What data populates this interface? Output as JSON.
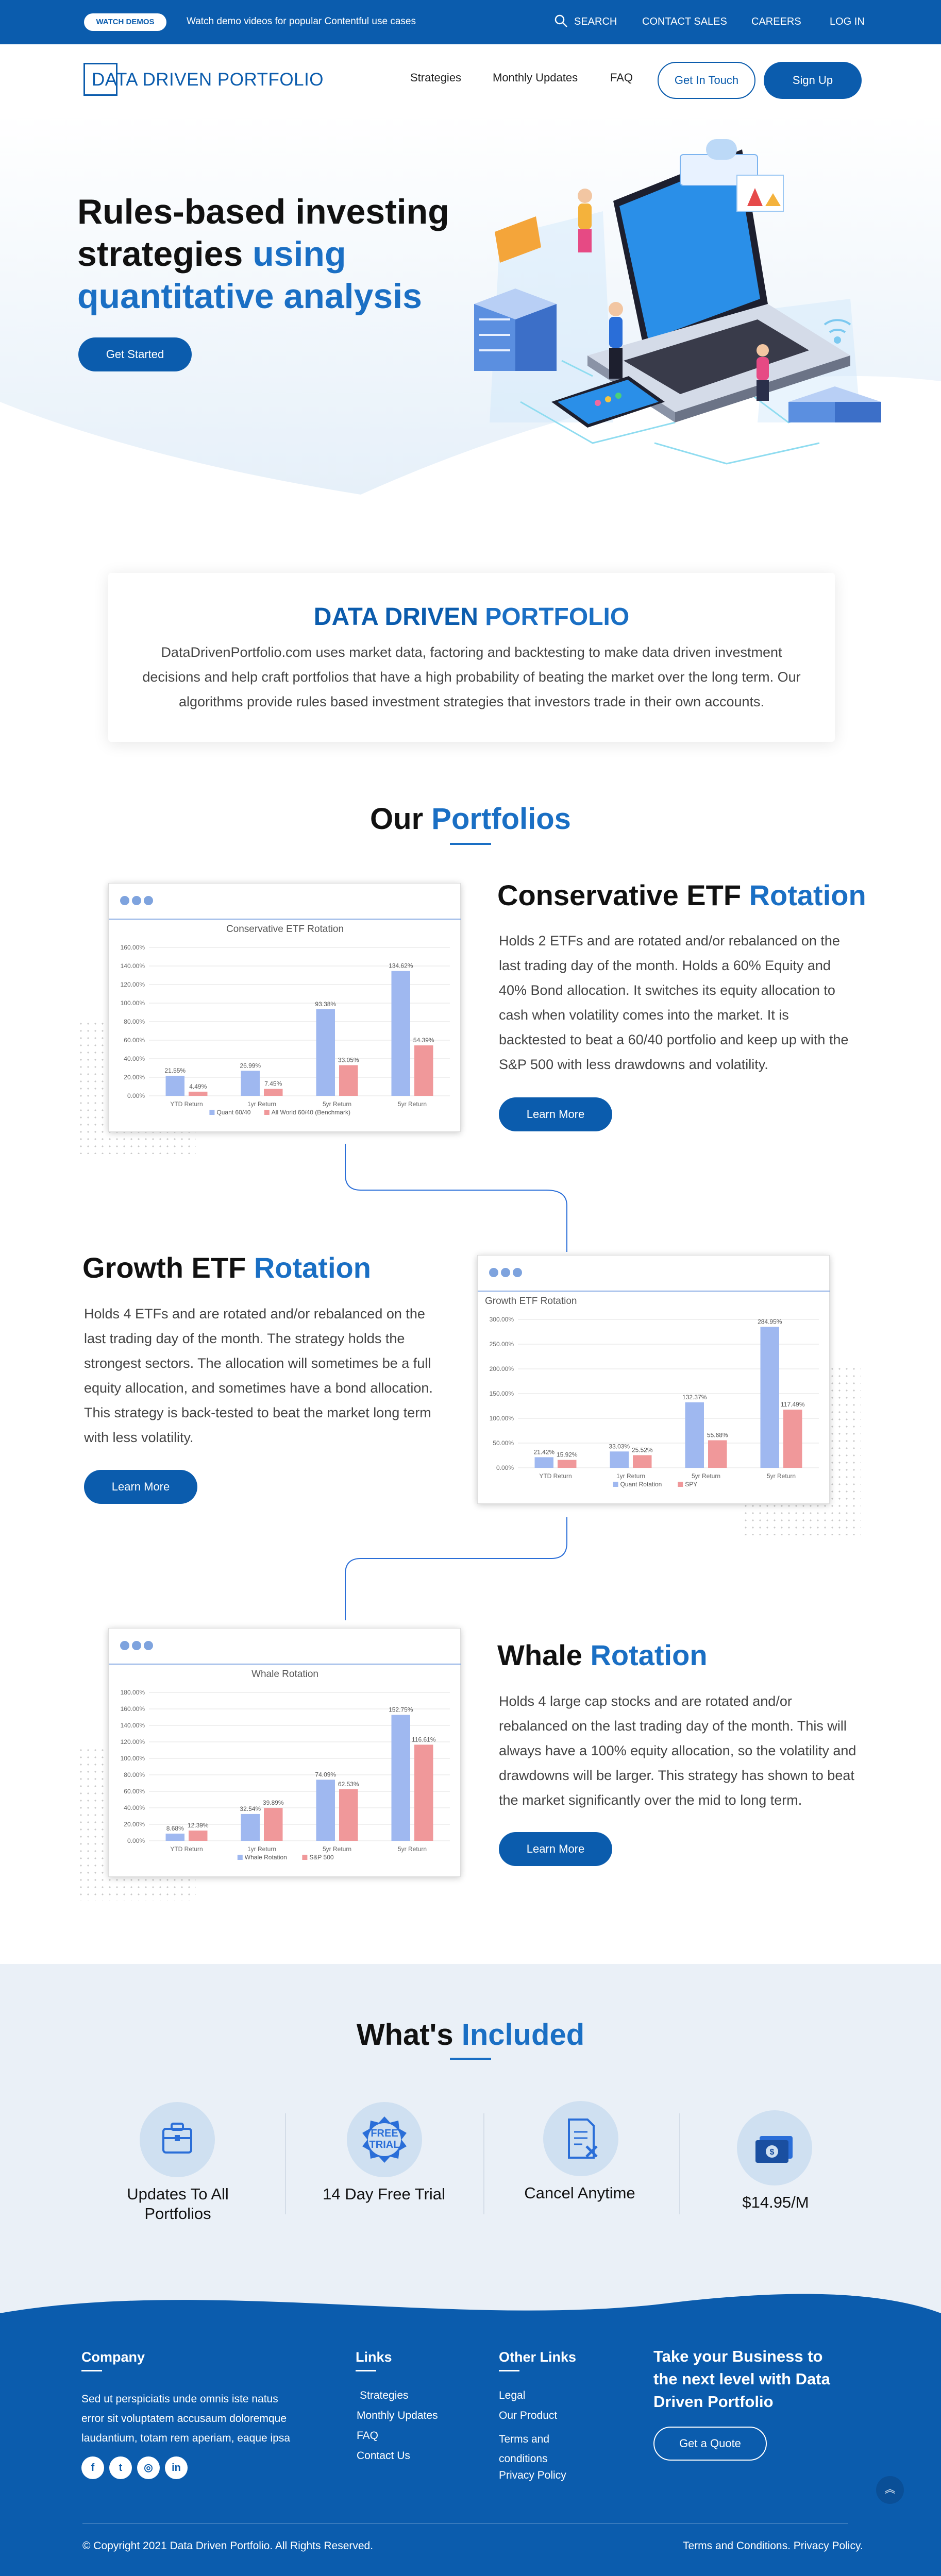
{
  "topbar": {
    "watch_label": "WATCH DEMOS",
    "promo_text": "Watch demo videos for popular Contentful use cases",
    "search_label": "SEARCH",
    "contact_sales_label": "CONTACT SALES",
    "careers_label": "CAREERS",
    "login_label": "LOG IN"
  },
  "header": {
    "logo_text": "DATA DRIVEN PORTFOLIO",
    "nav": [
      "Strategies",
      "Monthly Updates",
      "FAQ"
    ],
    "get_in_touch_label": "Get In Touch",
    "sign_up_label": "Sign Up"
  },
  "hero": {
    "title_line1": "Rules-based investing",
    "title_line2_plain": "strategies ",
    "title_line2_blue": "using",
    "title_line3_blue": "quantitative analysis",
    "cta_label": "Get Started"
  },
  "about": {
    "title_plain": "DATA DRIVEN ",
    "title_blue": "PORTFOLIO",
    "text": "DataDrivenPortfolio.com uses market data, factoring and backtesting to make data driven investment decisions and help craft portfolios that have a high probability of beating the market over the long term. Our algorithms provide rules based investment strategies that investors trade in their own accounts."
  },
  "portfolios_section": {
    "title_plain": "Our ",
    "title_blue": "Portfolios"
  },
  "strategies": [
    {
      "title_plain": "Conservative ETF ",
      "title_blue": "Rotation",
      "text": "Holds 2 ETFs and are rotated and/or rebalanced on the last trading day of the month. Holds a 60% Equity and 40% Bond allocation. It switches its equity allocation to cash when volatility comes into the market. It is backtested to beat a 60/40 portfolio and keep up with the S&P 500 with less drawdowns and volatility.",
      "learn_more_label": "Learn More"
    },
    {
      "title_plain": "Growth ETF ",
      "title_blue": "Rotation",
      "text": "Holds 4 ETFs and are rotated and/or rebalanced on the last trading day of the month. The strategy holds the strongest sectors. The allocation will sometimes be a full equity allocation, and sometimes have a bond allocation. This strategy is back-tested to beat the market long term with less volatility.",
      "learn_more_label": "Learn More"
    },
    {
      "title_plain": "Whale ",
      "title_blue": "Rotation",
      "text": "Holds 4 large cap stocks and are rotated and/or rebalanced on the last trading day of the month. This will always have a 100% equity allocation, so the volatility and drawdowns will be larger. This strategy has shown to beat the market significantly over the mid to long term.",
      "learn_more_label": "Learn More"
    }
  ],
  "chart_data": [
    {
      "type": "bar",
      "title": "Conservative  ETF Rotation",
      "categories": [
        "YTD Return",
        "1yr Return",
        "5yr Return",
        "5yr Return"
      ],
      "series": [
        {
          "name": "Quant 60/40",
          "values": [
            21.55,
            26.99,
            93.38,
            134.62
          ]
        },
        {
          "name": "All World 60/40 (Benchmark)",
          "values": [
            4.49,
            7.45,
            33.05,
            54.39
          ]
        }
      ],
      "value_labels": [
        [
          "21.55%",
          "26.99%",
          "93.38%",
          "134.62%"
        ],
        [
          "4.49%",
          "7.45%",
          "33.05%",
          "54.39%"
        ]
      ],
      "y_ticks": [
        "0.00%",
        "20.00%",
        "40.00%",
        "60.00%",
        "80.00%",
        "100.00%",
        "120.00%",
        "140.00%",
        "160.00%"
      ],
      "ylim": [
        0,
        160
      ],
      "grid": true,
      "legend_position": "bottom"
    },
    {
      "type": "bar",
      "title": "Growth  ETF Rotation",
      "categories": [
        "YTD Return",
        "1yr Return",
        "5yr Return",
        "5yr Return"
      ],
      "series": [
        {
          "name": "Quant Rotation",
          "values": [
            21.42,
            33.03,
            132.37,
            284.95
          ]
        },
        {
          "name": "SPY",
          "values": [
            15.92,
            25.52,
            55.68,
            117.49
          ]
        }
      ],
      "value_labels": [
        [
          "21.42%",
          "33.03%",
          "132.37%",
          "284.95%"
        ],
        [
          "15.92%",
          "25.52%",
          "55.68%",
          "117.49%"
        ]
      ],
      "y_ticks": [
        "0.00%",
        "50.00%",
        "100.00%",
        "150.00%",
        "200.00%",
        "250.00%",
        "300.00%"
      ],
      "ylim": [
        0,
        300
      ],
      "grid": true,
      "legend_position": "bottom"
    },
    {
      "type": "bar",
      "title": "Whale Rotation",
      "categories": [
        "YTD Return",
        "1yr Return",
        "5yr Return",
        "5yr Return"
      ],
      "series": [
        {
          "name": "Whale Rotation",
          "values": [
            8.68,
            32.54,
            74.09,
            152.75
          ]
        },
        {
          "name": "S&P 500",
          "values": [
            12.39,
            39.89,
            62.53,
            116.61
          ]
        }
      ],
      "value_labels": [
        [
          "8.68%",
          "32.54%",
          "74.09%",
          "152.75%"
        ],
        [
          "12.39%",
          "39.89%",
          "62.53%",
          "116.61%"
        ]
      ],
      "y_ticks": [
        "0.00%",
        "20.00%",
        "40.00%",
        "60.00%",
        "80.00%",
        "100.00%",
        "120.00%",
        "140.00%",
        "160.00%",
        "180.00%"
      ],
      "ylim": [
        0,
        180
      ],
      "grid": true,
      "legend_position": "bottom"
    }
  ],
  "included": {
    "title_plain": "What's ",
    "title_blue": "Included",
    "items": [
      {
        "label": "Updates To All Portfolios",
        "icon": "portfolio-icon"
      },
      {
        "label": "14 Day Free Trial",
        "icon": "free-trial-badge-icon"
      },
      {
        "label": "Cancel Anytime",
        "icon": "cancel-document-icon"
      },
      {
        "label": "$14.95/M",
        "icon": "money-icon"
      }
    ]
  },
  "footer": {
    "company_heading": "Company",
    "company_text": "Sed ut perspiciatis unde omnis iste natus error sit voluptatem accusaum doloremque laudantium, totam rem aperiam, eaque ipsa",
    "links_heading": "Links",
    "links": [
      "Strategies",
      "Monthly Updates",
      "FAQ",
      "Contact Us"
    ],
    "other_heading": "Other Links",
    "other_links": [
      "Legal",
      "Our Product",
      "Terms and conditions",
      "Privacy Policy"
    ],
    "cta_heading": "Take your Business to the next level with Data Driven Portfolio",
    "cta_button": "Get a Quote",
    "copyright": "© Copyright 2021 Data Driven Portfolio. All Rights Reserved.",
    "terms_label": "Terms and Conditions. Privacy Policy.",
    "social": [
      "f",
      "t",
      "in-ig",
      "in"
    ]
  },
  "colors": {
    "brand": "#0b5cad",
    "accent": "#1a6fc4",
    "bar_a": "#9fb8f0",
    "bar_b": "#f0989a"
  }
}
